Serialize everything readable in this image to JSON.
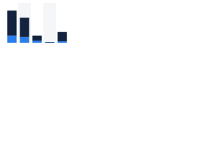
{
  "chart_data": {
    "type": "stacked-bar",
    "categories": [
      null,
      null,
      null,
      null,
      null
    ],
    "series": [
      {
        "name": null,
        "color": "#2b7de9",
        "values": [
          10,
          8,
          3,
          0.5,
          2
        ]
      },
      {
        "name": null,
        "color": "#13233f",
        "values": [
          35,
          27,
          7,
          0.5,
          13
        ]
      }
    ],
    "ylim": [
      0,
      50
    ]
  }
}
